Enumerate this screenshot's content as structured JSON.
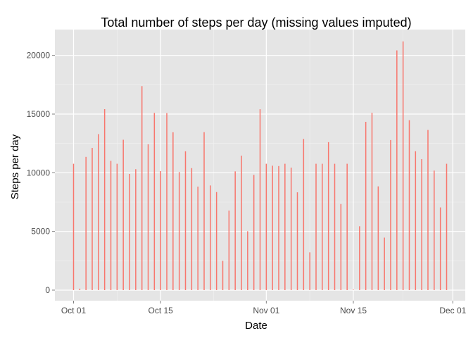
{
  "chart_data": {
    "type": "bar",
    "title": "Total number of steps per day (missing values imputed)",
    "xlabel": "Date",
    "ylabel": "Steps per day",
    "x_tick_labels": [
      "Oct 01",
      "Oct 15",
      "Nov 01",
      "Nov 15",
      "Dec 01"
    ],
    "x_ticks": [
      "2012-10-01",
      "2012-10-15",
      "2012-11-01",
      "2012-11-15",
      "2012-12-01"
    ],
    "y_ticks": [
      0,
      5000,
      10000,
      15000,
      20000
    ],
    "y_tick_labels": [
      "0",
      "5000",
      "10000",
      "15000",
      "20000"
    ],
    "xlim": [
      "2012-09-28",
      "2012-12-03"
    ],
    "ylim": [
      -900,
      22200
    ],
    "grid": true,
    "colors": {
      "bar": "#f8766d",
      "panel_background": "#e5e5e5",
      "grid_major": "#ffffff",
      "grid_minor": "#f2f2f2"
    },
    "series": [
      {
        "x": [
          "2012-10-01",
          "2012-10-02",
          "2012-10-03",
          "2012-10-04",
          "2012-10-05",
          "2012-10-06",
          "2012-10-07",
          "2012-10-08",
          "2012-10-09",
          "2012-10-10",
          "2012-10-11",
          "2012-10-12",
          "2012-10-13",
          "2012-10-14",
          "2012-10-15",
          "2012-10-16",
          "2012-10-17",
          "2012-10-18",
          "2012-10-19",
          "2012-10-20",
          "2012-10-21",
          "2012-10-22",
          "2012-10-23",
          "2012-10-24",
          "2012-10-25",
          "2012-10-26",
          "2012-10-27",
          "2012-10-28",
          "2012-10-29",
          "2012-10-30",
          "2012-10-31",
          "2012-11-01",
          "2012-11-02",
          "2012-11-03",
          "2012-11-04",
          "2012-11-05",
          "2012-11-06",
          "2012-11-07",
          "2012-11-08",
          "2012-11-09",
          "2012-11-10",
          "2012-11-11",
          "2012-11-12",
          "2012-11-13",
          "2012-11-14",
          "2012-11-15",
          "2012-11-16",
          "2012-11-17",
          "2012-11-18",
          "2012-11-19",
          "2012-11-20",
          "2012-11-21",
          "2012-11-22",
          "2012-11-23",
          "2012-11-24",
          "2012-11-25",
          "2012-11-26",
          "2012-11-27",
          "2012-11-28",
          "2012-11-29",
          "2012-11-30"
        ],
        "values": [
          10766,
          126,
          11352,
          12116,
          13294,
          15420,
          11015,
          10766,
          12811,
          9900,
          10304,
          17382,
          12426,
          15098,
          10139,
          15084,
          13452,
          10056,
          11829,
          10395,
          8821,
          13460,
          8918,
          8355,
          2492,
          6778,
          10119,
          11458,
          5018,
          9819,
          15414,
          10766,
          10600,
          10571,
          10766,
          10439,
          8334,
          12883,
          3219,
          10766,
          10766,
          12608,
          10765,
          7336,
          10766,
          41,
          5441,
          14339,
          15110,
          8841,
          4472,
          12787,
          20427,
          21194,
          14478,
          11834,
          11162,
          13646,
          10183,
          7047,
          10766
        ]
      }
    ]
  }
}
